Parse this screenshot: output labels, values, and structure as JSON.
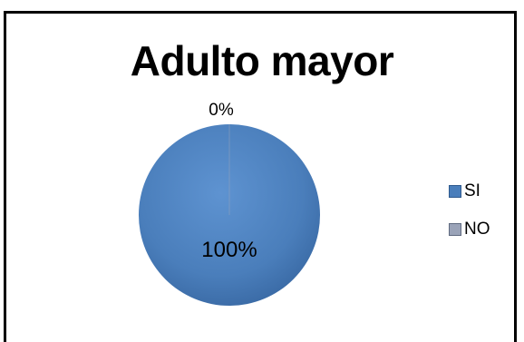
{
  "chart_data": {
    "type": "pie",
    "title": "Adulto mayor",
    "categories": [
      "SI",
      "NO"
    ],
    "values": [
      100,
      0
    ],
    "data_labels": [
      "100%",
      "0%"
    ],
    "legend_position": "right",
    "colors": [
      "#4a7ebb",
      "#9aa3b8"
    ]
  }
}
